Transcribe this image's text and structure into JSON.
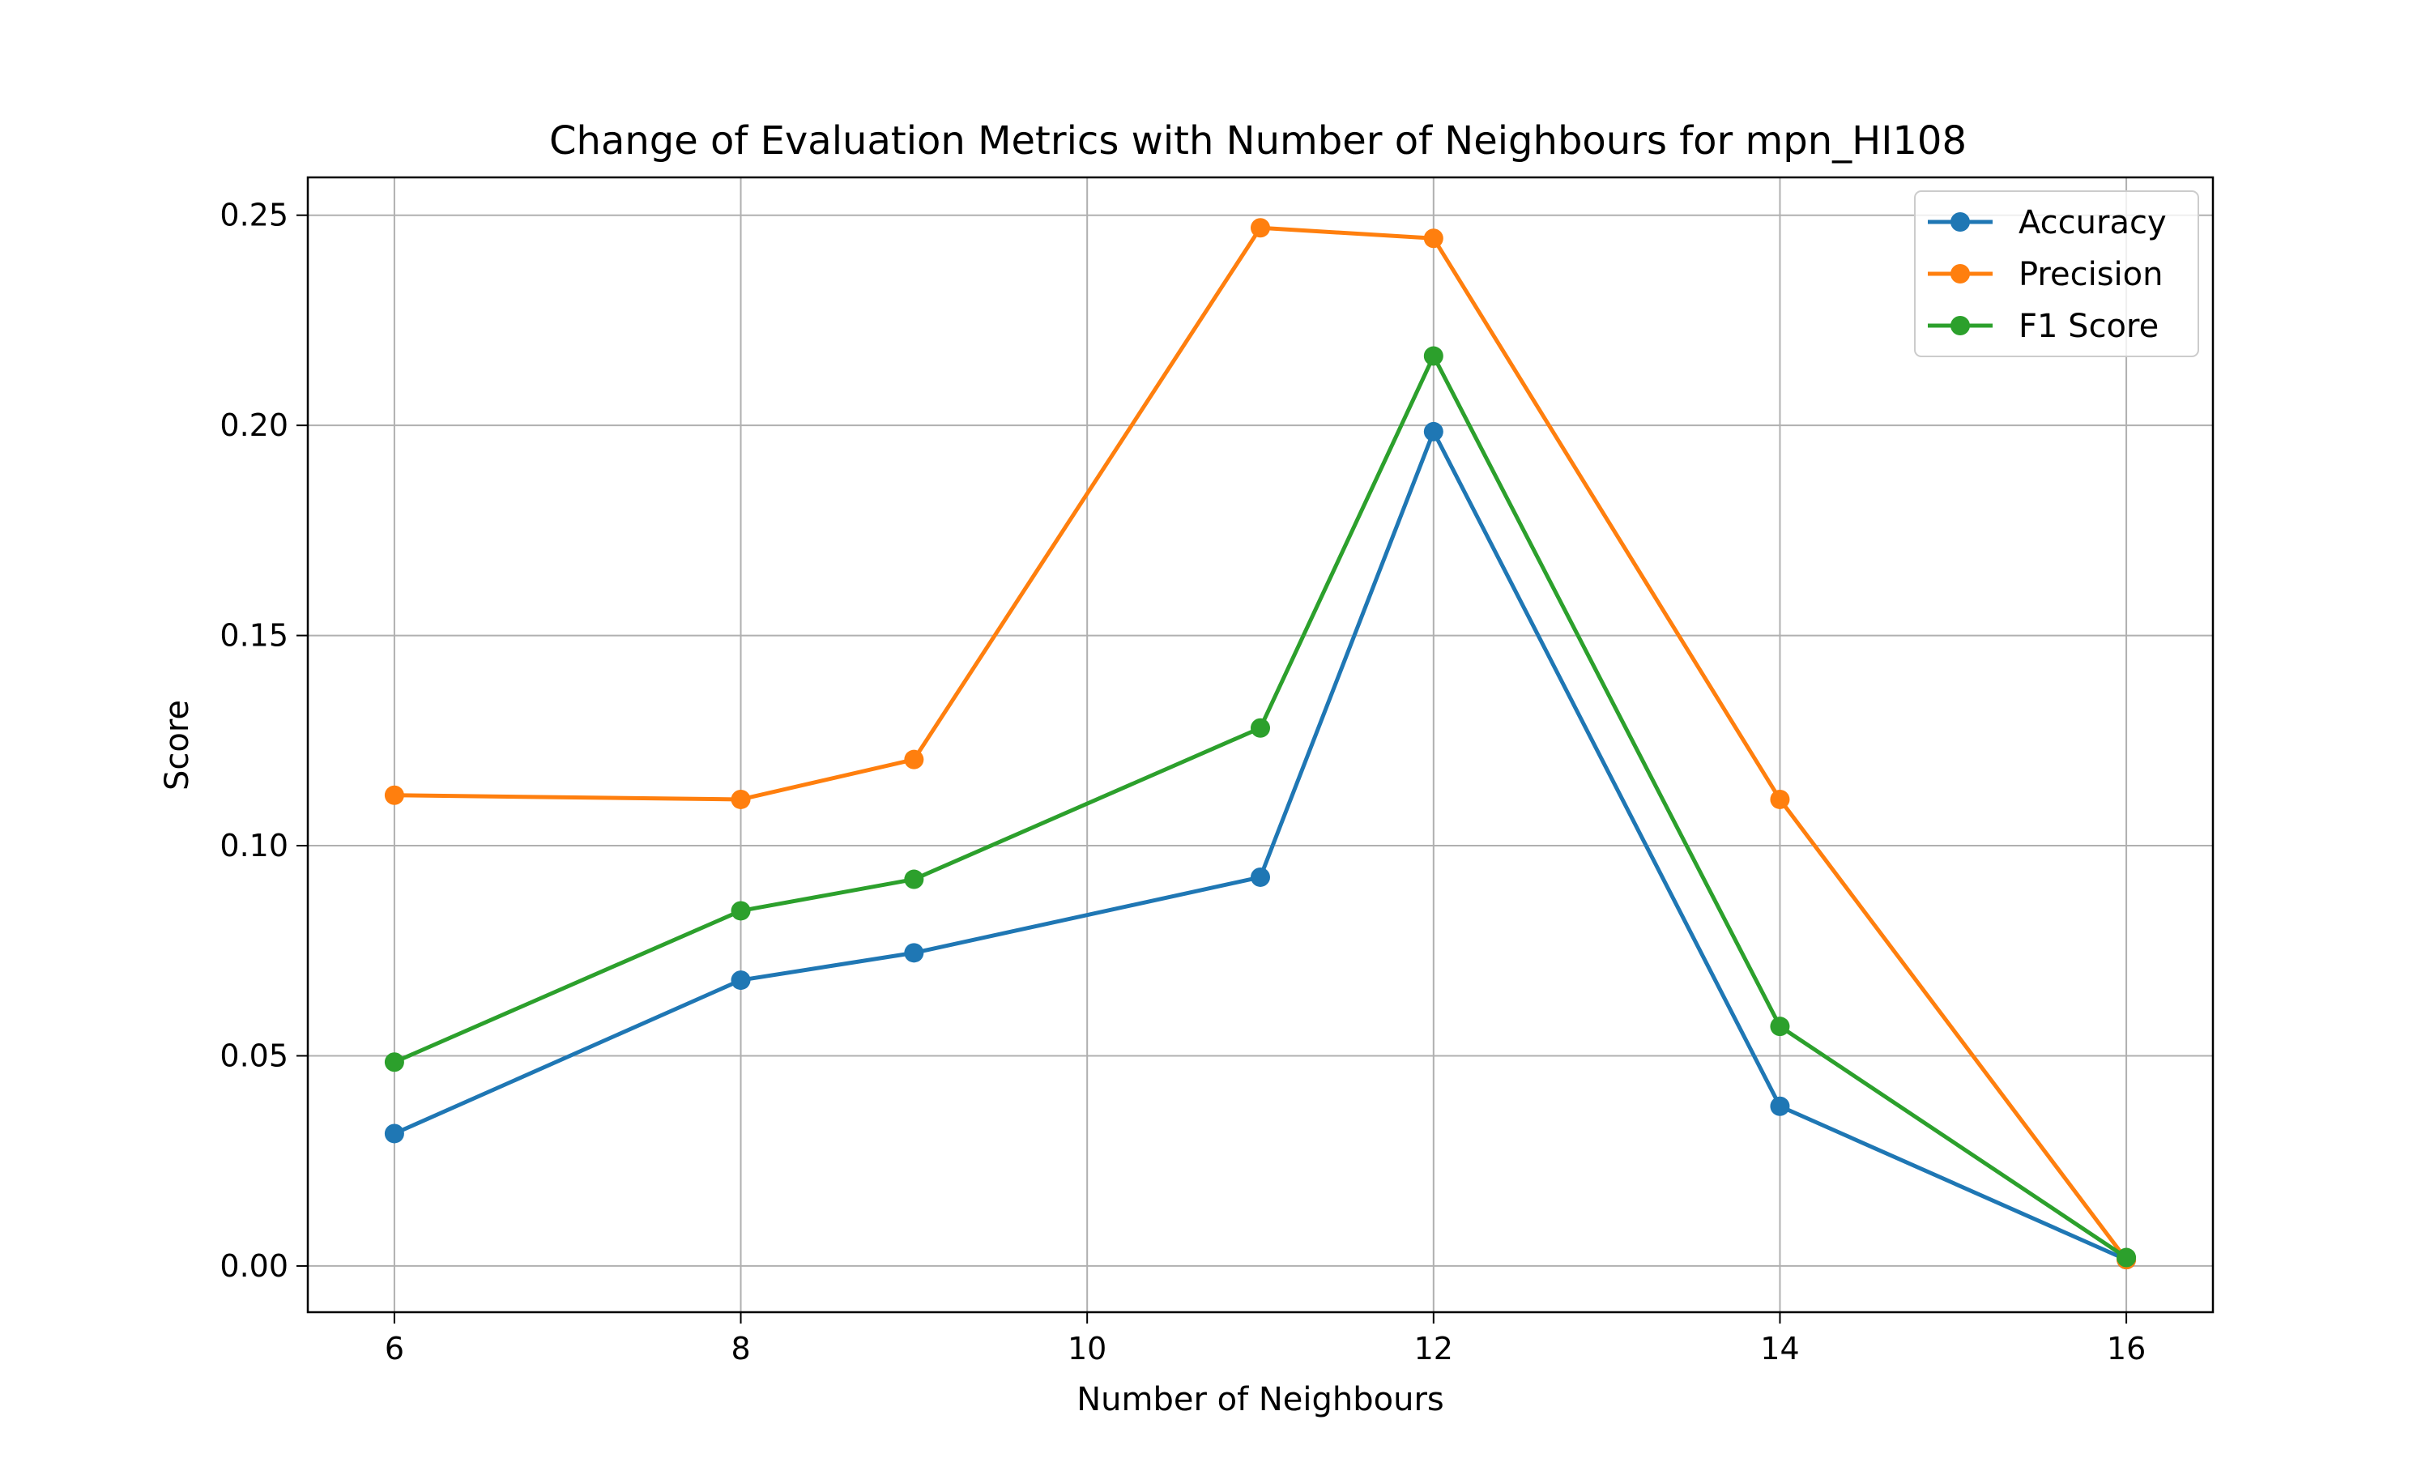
{
  "chart_data": {
    "type": "line",
    "title": "Change of Evaluation Metrics with Number of Neighbours for mpn_HI108",
    "xlabel": "Number of Neighbours",
    "ylabel": "Score",
    "x": [
      6,
      8,
      9,
      11,
      12,
      14,
      16
    ],
    "xlim": [
      5.5,
      16.5
    ],
    "ylim": [
      -0.011,
      0.259
    ],
    "xticks": [
      6,
      8,
      10,
      12,
      14,
      16
    ],
    "xtick_labels": [
      "6",
      "8",
      "10",
      "12",
      "14",
      "16"
    ],
    "yticks": [
      0.0,
      0.05,
      0.1,
      0.15,
      0.2,
      0.25
    ],
    "ytick_labels": [
      "0.00",
      "0.05",
      "0.10",
      "0.15",
      "0.20",
      "0.25"
    ],
    "grid": true,
    "legend_position": "top-right",
    "series": [
      {
        "name": "Accuracy",
        "color": "#1f77b4",
        "values": [
          0.0315,
          0.068,
          0.0745,
          0.0925,
          0.1985,
          0.038,
          0.0015
        ]
      },
      {
        "name": "Precision",
        "color": "#ff7f0e",
        "values": [
          0.112,
          0.111,
          0.1205,
          0.247,
          0.2445,
          0.111,
          0.0015
        ]
      },
      {
        "name": "F1 Score",
        "color": "#2ca02c",
        "values": [
          0.0485,
          0.0845,
          0.092,
          0.128,
          0.2165,
          0.057,
          0.002
        ]
      }
    ]
  }
}
